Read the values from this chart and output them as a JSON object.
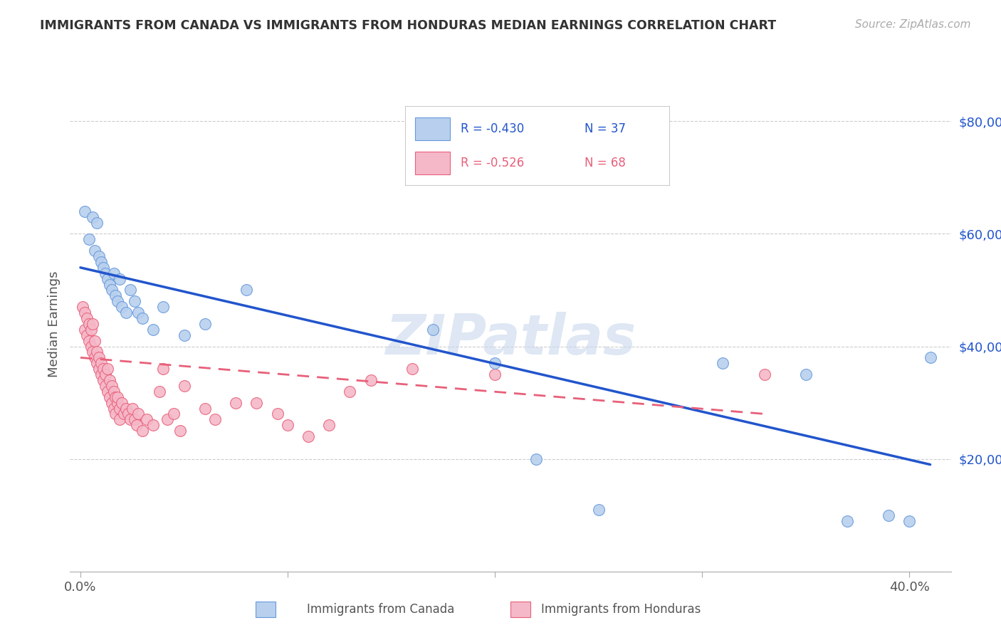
{
  "title": "IMMIGRANTS FROM CANADA VS IMMIGRANTS FROM HONDURAS MEDIAN EARNINGS CORRELATION CHART",
  "source": "Source: ZipAtlas.com",
  "ylabel": "Median Earnings",
  "legend_labels": [
    "Immigrants from Canada",
    "Immigrants from Honduras"
  ],
  "legend_r": [
    "R = -0.430",
    "R = -0.526"
  ],
  "legend_n": [
    "N = 37",
    "N = 68"
  ],
  "color_canada": "#b8d0ed",
  "color_canada_line": "#2255cc",
  "color_canada_edge": "#6699dd",
  "color_honduras": "#f5b8c8",
  "color_honduras_line": "#e8607a",
  "color_honduras_edge": "#e8607a",
  "watermark": "ZIPatlas",
  "xlim": [
    -0.005,
    0.42
  ],
  "ylim": [
    0,
    88000
  ],
  "yticks": [
    20000,
    40000,
    60000,
    80000
  ],
  "xticks": [
    0.0,
    0.1,
    0.2,
    0.3,
    0.4
  ],
  "canada_x": [
    0.002,
    0.004,
    0.006,
    0.007,
    0.008,
    0.009,
    0.01,
    0.011,
    0.012,
    0.013,
    0.014,
    0.015,
    0.016,
    0.017,
    0.018,
    0.019,
    0.02,
    0.022,
    0.024,
    0.026,
    0.028,
    0.03,
    0.035,
    0.04,
    0.05,
    0.06,
    0.08,
    0.17,
    0.2,
    0.22,
    0.25,
    0.31,
    0.35,
    0.37,
    0.39,
    0.4,
    0.41
  ],
  "canada_y": [
    64000,
    59000,
    63000,
    57000,
    62000,
    56000,
    55000,
    54000,
    53000,
    52000,
    51000,
    50000,
    53000,
    49000,
    48000,
    52000,
    47000,
    46000,
    50000,
    48000,
    46000,
    45000,
    43000,
    47000,
    42000,
    44000,
    50000,
    43000,
    37000,
    20000,
    11000,
    37000,
    35000,
    9000,
    10000,
    9000,
    38000
  ],
  "honduras_x": [
    0.001,
    0.002,
    0.002,
    0.003,
    0.003,
    0.004,
    0.004,
    0.005,
    0.005,
    0.006,
    0.006,
    0.007,
    0.007,
    0.008,
    0.008,
    0.009,
    0.009,
    0.01,
    0.01,
    0.011,
    0.011,
    0.012,
    0.012,
    0.013,
    0.013,
    0.014,
    0.014,
    0.015,
    0.015,
    0.016,
    0.016,
    0.017,
    0.017,
    0.018,
    0.018,
    0.019,
    0.019,
    0.02,
    0.021,
    0.022,
    0.023,
    0.024,
    0.025,
    0.026,
    0.027,
    0.028,
    0.03,
    0.032,
    0.035,
    0.038,
    0.04,
    0.042,
    0.045,
    0.048,
    0.05,
    0.06,
    0.065,
    0.075,
    0.085,
    0.095,
    0.1,
    0.11,
    0.12,
    0.13,
    0.14,
    0.16,
    0.2,
    0.33
  ],
  "honduras_y": [
    47000,
    46000,
    43000,
    45000,
    42000,
    44000,
    41000,
    43000,
    40000,
    44000,
    39000,
    38000,
    41000,
    39000,
    37000,
    38000,
    36000,
    37000,
    35000,
    36000,
    34000,
    35000,
    33000,
    36000,
    32000,
    34000,
    31000,
    33000,
    30000,
    32000,
    29000,
    31000,
    28000,
    30000,
    31000,
    29000,
    27000,
    30000,
    28000,
    29000,
    28000,
    27000,
    29000,
    27000,
    26000,
    28000,
    25000,
    27000,
    26000,
    32000,
    36000,
    27000,
    28000,
    25000,
    33000,
    29000,
    27000,
    30000,
    30000,
    28000,
    26000,
    24000,
    26000,
    32000,
    34000,
    36000,
    35000,
    35000
  ],
  "canada_trendline_x": [
    0.0,
    0.41
  ],
  "canada_trendline_y": [
    54000,
    19000
  ],
  "honduras_trendline_x": [
    0.0,
    0.33
  ],
  "honduras_trendline_y": [
    38000,
    28000
  ]
}
